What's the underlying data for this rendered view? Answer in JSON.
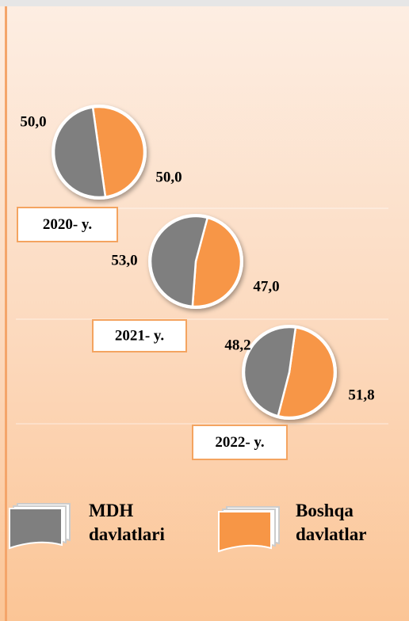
{
  "chart_data": {
    "type": "pie",
    "series": [
      {
        "name": "MDH davlatlari",
        "color": "#7f7f7f"
      },
      {
        "name": "Boshqa davlatlar",
        "color": "#f79646"
      }
    ],
    "pies": [
      {
        "label": "2020- y.",
        "values": [
          50.0,
          50.0
        ],
        "value_labels": [
          "50,0",
          "50,0"
        ]
      },
      {
        "label": "2021- y.",
        "values": [
          53.0,
          47.0
        ],
        "value_labels": [
          "53,0",
          "47,0"
        ]
      },
      {
        "label": "2022- y.",
        "values": [
          48.2,
          51.8
        ],
        "value_labels": [
          "48,2",
          "51,8"
        ]
      }
    ]
  }
}
